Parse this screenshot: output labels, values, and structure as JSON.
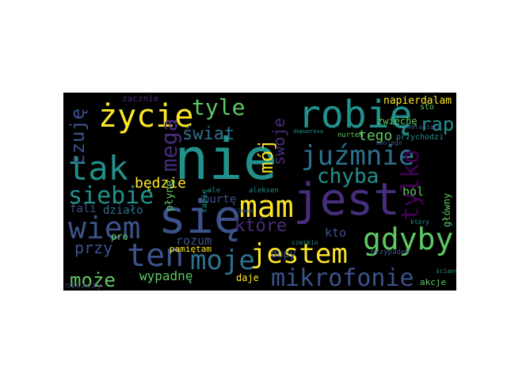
{
  "cloud": {
    "background": "#000000",
    "palette": [
      "#440154",
      "#3b528b",
      "#21918c",
      "#5ec962",
      "#fde725",
      "#2c728e",
      "#472d7b"
    ],
    "words": [
      {
        "text": "nie",
        "color": "#21918c"
      },
      {
        "text": "się",
        "color": "#3b528b"
      },
      {
        "text": "jest",
        "color": "#472d7b"
      },
      {
        "text": "robię",
        "color": "#21918c"
      },
      {
        "text": "życie",
        "color": "#fde725"
      },
      {
        "text": "tak",
        "color": "#21918c"
      },
      {
        "text": "juźmnie",
        "color": "#2c728e"
      },
      {
        "text": "mam",
        "color": "#fde725"
      },
      {
        "text": "wiem",
        "color": "#3b528b"
      },
      {
        "text": "ten",
        "color": "#3b528b"
      },
      {
        "text": "moje",
        "color": "#2c728e"
      },
      {
        "text": "jestem",
        "color": "#fde725"
      },
      {
        "text": "gdyby",
        "color": "#5ec962"
      },
      {
        "text": "mikrofonie",
        "color": "#3b528b"
      },
      {
        "text": "siebie",
        "color": "#21918c"
      },
      {
        "text": "tyle",
        "color": "#5ec962"
      },
      {
        "text": "chyba",
        "color": "#21918c"
      },
      {
        "text": "świat",
        "color": "#2c728e"
      },
      {
        "text": "może",
        "color": "#5ec962"
      },
      {
        "text": "rap",
        "color": "#21918c"
      },
      {
        "text": "tylko",
        "color": "#440154"
      },
      {
        "text": "mega",
        "color": "#472d7b"
      },
      {
        "text": "czuję",
        "color": "#3b528b"
      },
      {
        "text": "mój",
        "color": "#fde725"
      },
      {
        "text": "swoje",
        "color": "#472d7b"
      },
      {
        "text": "przy",
        "color": "#3b528b"
      },
      {
        "text": "które",
        "color": "#472d7b"
      },
      {
        "text": "tego",
        "color": "#5ec962"
      },
      {
        "text": "będzie",
        "color": "#fde725"
      },
      {
        "text": "napierdalam",
        "color": "#fde725"
      },
      {
        "text": "zacznie",
        "color": "#472d7b"
      },
      {
        "text": "zwiechę",
        "color": "#5ec962"
      },
      {
        "text": "wypadnę",
        "color": "#5ec962"
      },
      {
        "text": "rozum",
        "color": "#3b528b"
      },
      {
        "text": "dupy",
        "color": "#3b528b"
      },
      {
        "text": "kto",
        "color": "#3b528b"
      },
      {
        "text": "ból",
        "color": "#5ec962"
      },
      {
        "text": "daje",
        "color": "#fde725"
      },
      {
        "text": "fali",
        "color": "#3b528b"
      },
      {
        "text": "działo",
        "color": "#2c728e"
      },
      {
        "text": "burtę",
        "color": "#3b528b"
      },
      {
        "text": "płynę",
        "color": "#5ec962"
      },
      {
        "text": "łapię",
        "color": "#21918c"
      },
      {
        "text": "pamiętam",
        "color": "#fde725"
      },
      {
        "text": "pro",
        "color": "#5ec962"
      },
      {
        "text": "niszczy",
        "color": "#472d7b"
      },
      {
        "text": "akcje",
        "color": "#5ec962"
      },
      {
        "text": "sto",
        "color": "#5ec962"
      },
      {
        "text": "przychodzi",
        "color": "#21918c"
      },
      {
        "text": "nurtem",
        "color": "#5ec962"
      },
      {
        "text": "główny",
        "color": "#5ec962"
      },
      {
        "text": "przypadek",
        "color": "#3b528b"
      },
      {
        "text": "cześkin",
        "color": "#21918c"
      },
      {
        "text": "filmem",
        "color": "#3b528b"
      },
      {
        "text": "aleksen",
        "color": "#21918c"
      },
      {
        "text": "ale",
        "color": "#21918c"
      },
      {
        "text": "dopuerosa",
        "color": "#21918c"
      },
      {
        "text": "melanżach",
        "color": "#3b528b"
      },
      {
        "text": "swojego",
        "color": "#3b528b"
      },
      {
        "text": "który",
        "color": "#21918c"
      },
      {
        "text": "ściany",
        "color": "#21918c"
      }
    ]
  }
}
